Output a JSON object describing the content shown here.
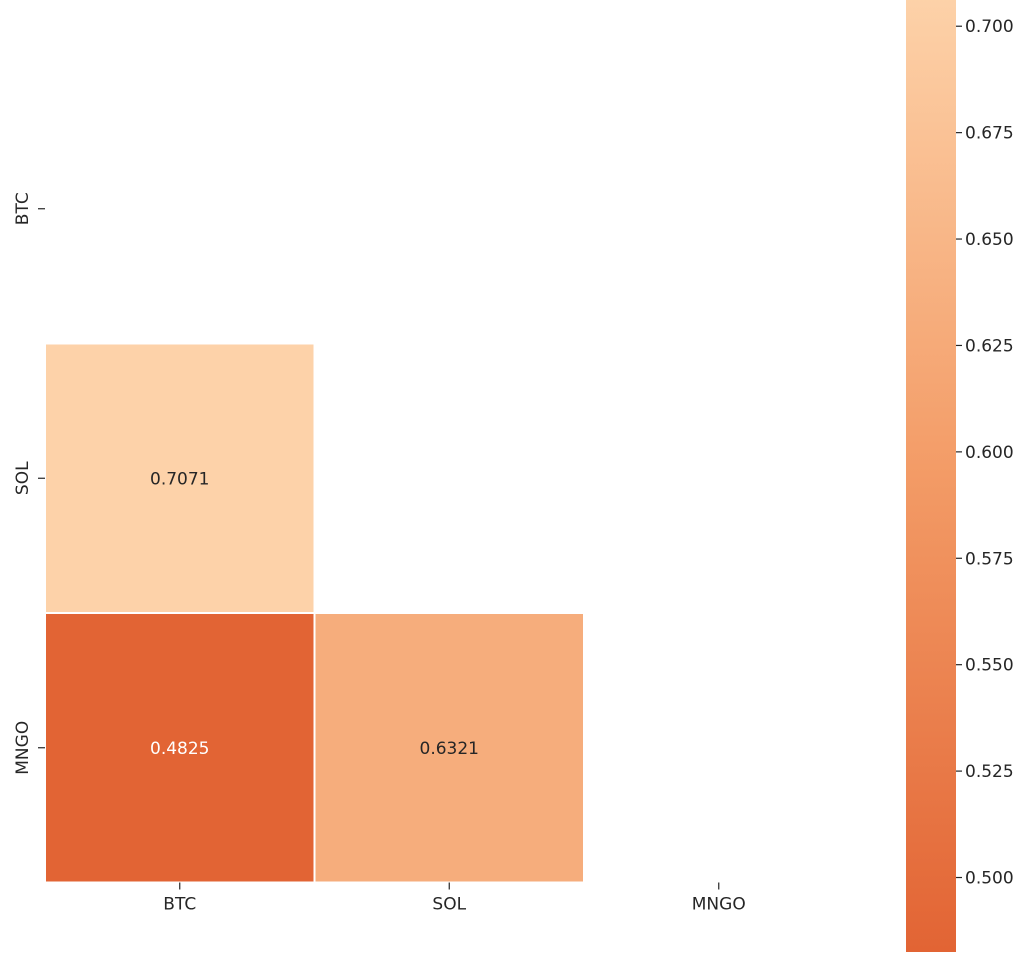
{
  "chart_data": {
    "type": "heatmap",
    "title": "",
    "xlabel": "",
    "ylabel": "",
    "x_categories": [
      "BTC",
      "SOL",
      "MNGO"
    ],
    "y_categories": [
      "BTC",
      "SOL",
      "MNGO"
    ],
    "mask": "upper-triangle-and-diagonal",
    "cells": [
      {
        "row": "SOL",
        "col": "BTC",
        "value": 0.7071,
        "label": "0.7071"
      },
      {
        "row": "MNGO",
        "col": "BTC",
        "value": 0.4825,
        "label": "0.4825"
      },
      {
        "row": "MNGO",
        "col": "SOL",
        "value": 0.6321,
        "label": "0.6321"
      }
    ],
    "colorbar": {
      "placement": "right",
      "range": [
        0.4825,
        0.7071
      ],
      "ticks": [
        0.5,
        0.525,
        0.55,
        0.575,
        0.6,
        0.625,
        0.65,
        0.675,
        0.7
      ],
      "tick_labels": [
        "0.500",
        "0.525",
        "0.550",
        "0.575",
        "0.600",
        "0.625",
        "0.650",
        "0.675",
        "0.700"
      ],
      "color_low": "#e26434",
      "color_high": "#fdd2a9"
    },
    "annotation_colors": {
      "dark_text": "#262626",
      "light_text": "#ffffff"
    },
    "grid": false
  }
}
